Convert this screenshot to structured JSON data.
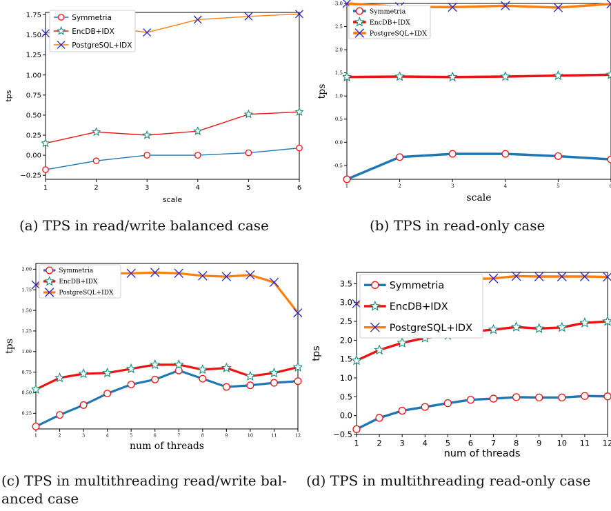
{
  "colors": {
    "symmetria": "#1f77b4",
    "encdb": "#ee1111",
    "postgres": "#ff7f0e",
    "marker_x": "#2222cc",
    "marker_circle": "#ee1111",
    "marker_star": "#1a8a7a"
  },
  "captions": {
    "a": "(a) TPS in read/write balanced case",
    "b": "(b) TPS in read-only case",
    "c1": "(c) TPS in multithreading read/write bal-",
    "c2": "anced case",
    "d": "(d) TPS in multithreading read-only case"
  },
  "chart_data": [
    {
      "id": "a",
      "type": "line",
      "xlabel": "scale",
      "ylabel": "tps",
      "x": [
        1,
        2,
        3,
        4,
        5,
        6
      ],
      "xlim": [
        1,
        6
      ],
      "ylim": [
        -0.3,
        1.78
      ],
      "xticks": [
        "1",
        "2",
        "3",
        "4",
        "5",
        "6"
      ],
      "yticks": [
        -0.25,
        0,
        0.25,
        0.5,
        0.75,
        1.0,
        1.25,
        1.5,
        1.75
      ],
      "ytick_labels": [
        "−0.25",
        "0.00",
        "0.25",
        "0.50",
        "0.75",
        "1.00",
        "1.25",
        "1.50",
        "1.75"
      ],
      "legend_position": "top-left",
      "series": [
        {
          "name": "Symmetria",
          "values": [
            -0.18,
            -0.07,
            0.0,
            0.0,
            0.03,
            0.09
          ]
        },
        {
          "name": "EncDB+IDX",
          "values": [
            0.15,
            0.29,
            0.25,
            0.3,
            0.51,
            0.54
          ]
        },
        {
          "name": "PostgreSQL+IDX",
          "values": [
            1.52,
            1.62,
            1.53,
            1.69,
            1.73,
            1.76
          ]
        }
      ]
    },
    {
      "id": "b",
      "type": "line",
      "xlabel": "scale",
      "ylabel": "tps",
      "x": [
        1,
        2,
        3,
        4,
        5,
        6
      ],
      "xlim": [
        1,
        6
      ],
      "ylim": [
        -0.8,
        3.0
      ],
      "xticks": [
        "1",
        "2",
        "3",
        "4",
        "5",
        "6"
      ],
      "yticks": [
        -0.5,
        0,
        0.5,
        1.0,
        1.5,
        2.0,
        2.5,
        3.0
      ],
      "ytick_labels": [
        "-0.5",
        "0.0",
        "0.5",
        "1.0",
        "1.5",
        "2.0",
        "2.5",
        "3.0"
      ],
      "legend_position": "top-left",
      "series": [
        {
          "name": "Symmetria",
          "values": [
            -0.8,
            -0.32,
            -0.25,
            -0.25,
            -0.3,
            -0.37
          ]
        },
        {
          "name": "EncDB+IDX",
          "values": [
            1.41,
            1.42,
            1.41,
            1.42,
            1.44,
            1.46
          ]
        },
        {
          "name": "PostgreSQL+IDX",
          "values": [
            3.0,
            2.93,
            2.92,
            2.95,
            2.91,
            2.99
          ]
        }
      ]
    },
    {
      "id": "c",
      "type": "line",
      "xlabel": "num of threads",
      "ylabel": "tps",
      "x": [
        1,
        2,
        3,
        4,
        5,
        6,
        7,
        8,
        9,
        10,
        11,
        12
      ],
      "xlim": [
        1,
        12
      ],
      "ylim": [
        0.06,
        2.07
      ],
      "xticks": [
        "1",
        "2",
        "3",
        "4",
        "5",
        "6",
        "7",
        "8",
        "9",
        "10",
        "11",
        "12"
      ],
      "yticks": [
        0.25,
        0.5,
        0.75,
        1.0,
        1.25,
        1.5,
        1.75,
        2.0
      ],
      "ytick_labels": [
        "0.25",
        "0.50",
        "0.75",
        "1.00",
        "1.25",
        "1.50",
        "1.75",
        "2.00"
      ],
      "legend_position": "top-left",
      "series": [
        {
          "name": "Symmetria",
          "values": [
            0.09,
            0.23,
            0.35,
            0.49,
            0.6,
            0.66,
            0.77,
            0.67,
            0.57,
            0.59,
            0.62,
            0.64
          ]
        },
        {
          "name": "EncDB+IDX",
          "values": [
            0.54,
            0.68,
            0.73,
            0.74,
            0.79,
            0.84,
            0.84,
            0.78,
            0.8,
            0.7,
            0.74,
            0.81
          ]
        },
        {
          "name": "PostgreSQL+IDX",
          "values": [
            1.81,
            1.88,
            1.94,
            1.95,
            1.95,
            1.96,
            1.95,
            1.92,
            1.91,
            1.93,
            1.84,
            1.47
          ]
        }
      ]
    },
    {
      "id": "d",
      "type": "line",
      "xlabel": "num of threads",
      "ylabel": "tps",
      "x": [
        1,
        2,
        3,
        4,
        5,
        6,
        7,
        8,
        9,
        10,
        11,
        12
      ],
      "xlim": [
        1,
        12
      ],
      "ylim": [
        -0.5,
        3.8
      ],
      "xticks": [
        "1",
        "2",
        "3",
        "4",
        "5",
        "6",
        "7",
        "8",
        "9",
        "10",
        "11",
        "12"
      ],
      "yticks": [
        -0.5,
        0,
        0.5,
        1.0,
        1.5,
        2.0,
        2.5,
        3.0,
        3.5
      ],
      "ytick_labels": [
        "−0.5",
        "0.0",
        "0.5",
        "1.0",
        "1.5",
        "2.0",
        "2.5",
        "3.0",
        "3.5"
      ],
      "legend_position": "top-left",
      "series": [
        {
          "name": "Symmetria",
          "values": [
            -0.36,
            -0.06,
            0.13,
            0.23,
            0.33,
            0.42,
            0.45,
            0.49,
            0.48,
            0.48,
            0.52,
            0.51
          ]
        },
        {
          "name": "EncDB+IDX",
          "values": [
            1.46,
            1.74,
            1.93,
            2.06,
            2.13,
            2.23,
            2.28,
            2.35,
            2.31,
            2.34,
            2.46,
            2.5
          ]
        },
        {
          "name": "PostgreSQL+IDX",
          "values": [
            2.97,
            3.27,
            3.43,
            3.55,
            3.6,
            3.62,
            3.64,
            3.7,
            3.69,
            3.69,
            3.69,
            3.68
          ]
        }
      ]
    }
  ]
}
